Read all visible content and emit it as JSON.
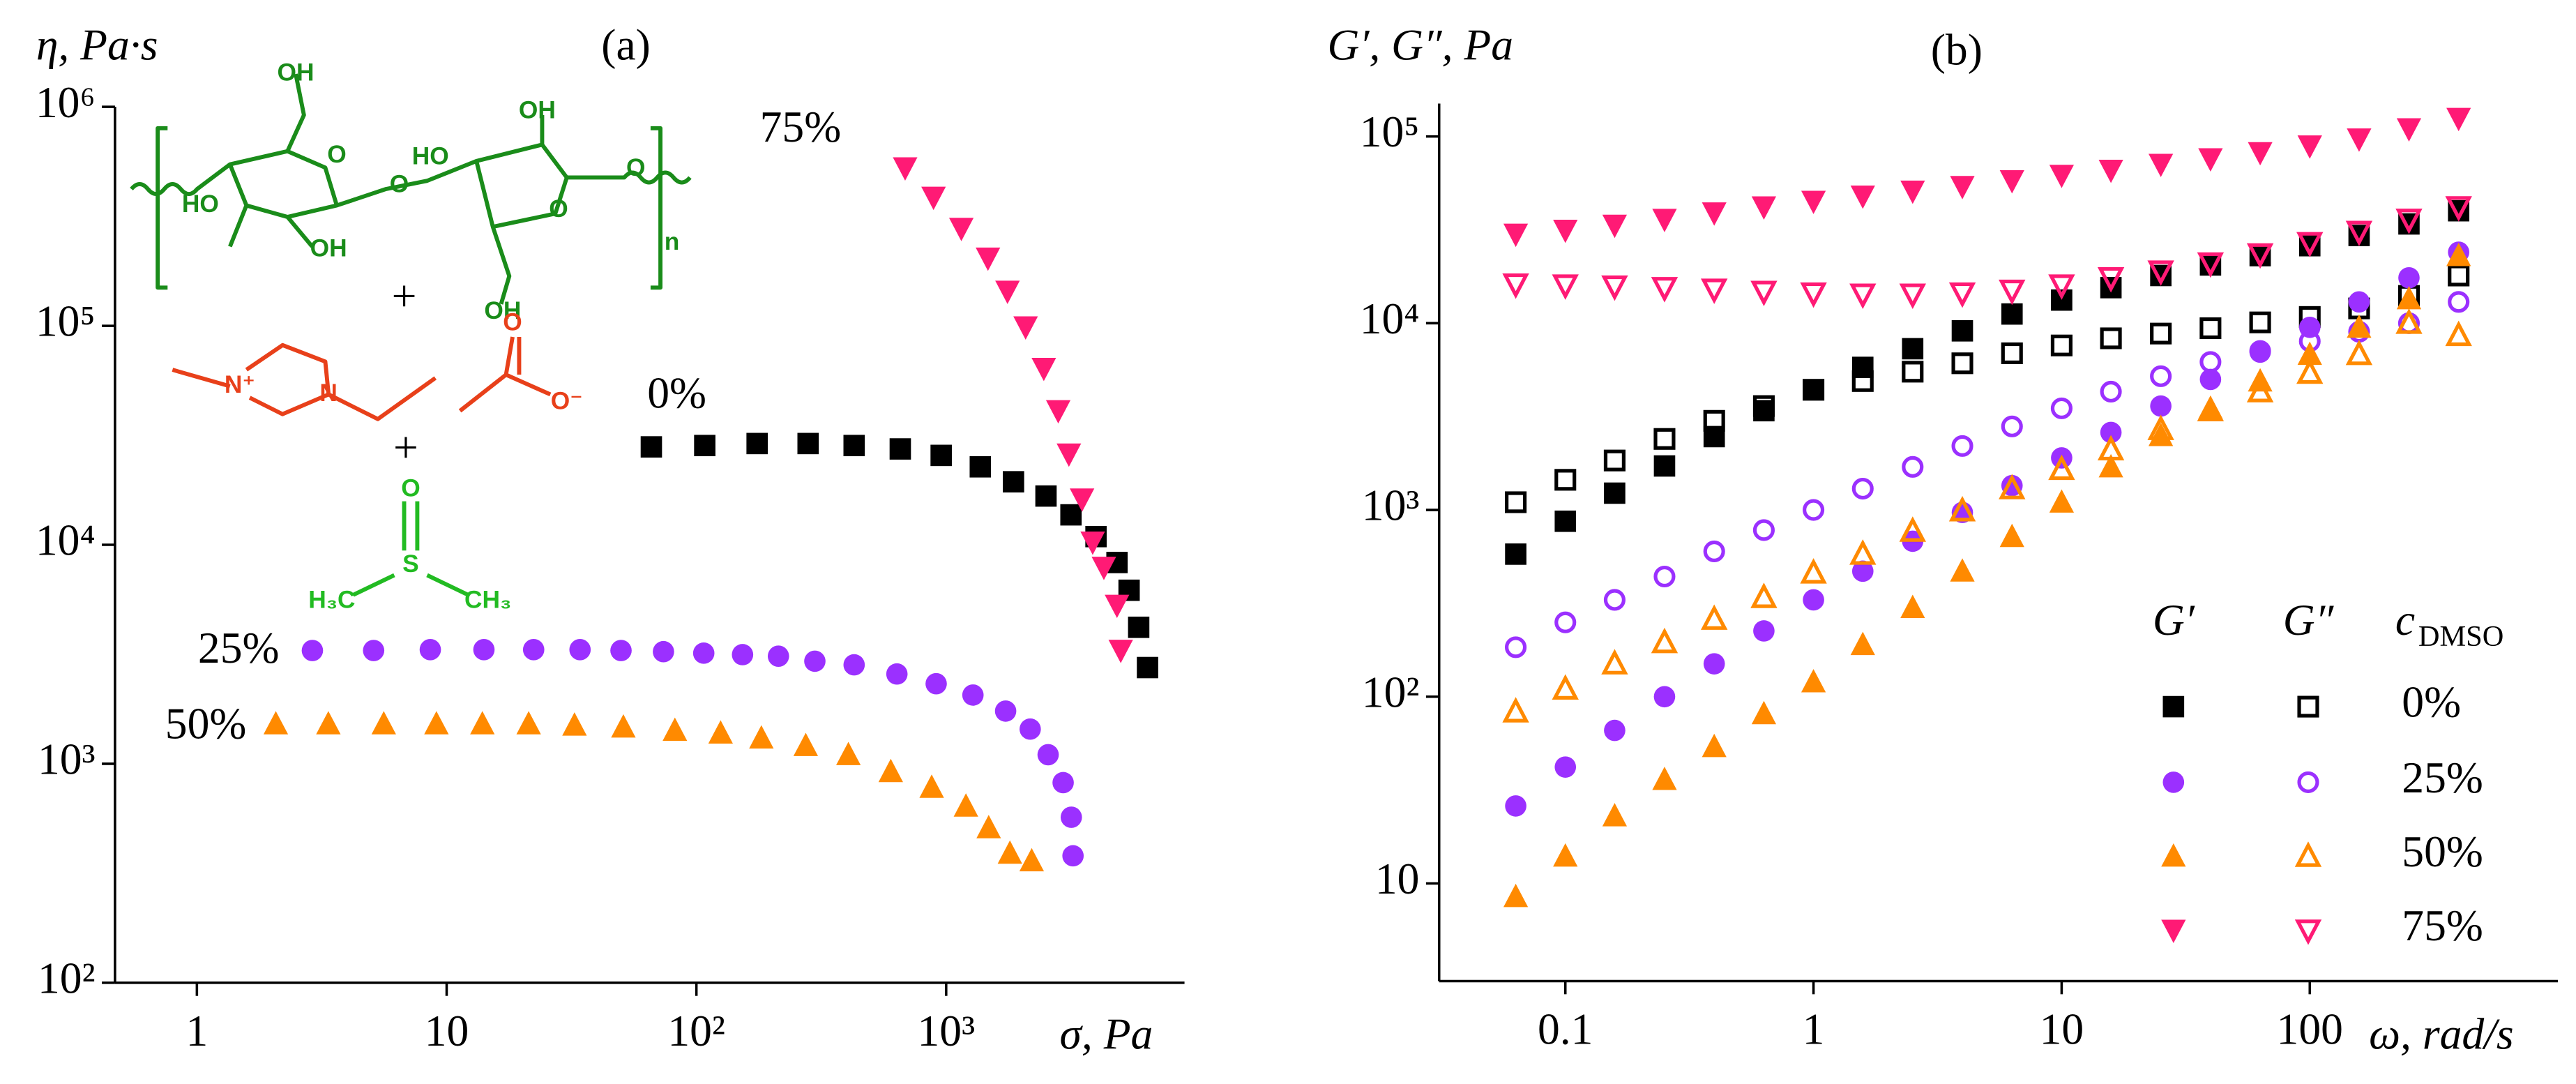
{
  "chart_data": [
    {
      "type": "scatter",
      "panel": "(a)",
      "ylabel": "η, Pa·s",
      "xlabel": "σ, Pa",
      "log_x": true,
      "log_y": true,
      "xlim": [
        0.47,
        9000
      ],
      "ylim": [
        100,
        1000000
      ],
      "xticks": [
        1,
        10,
        {
          "value": 100,
          "label": "10²"
        },
        {
          "value": 1000,
          "label": "10³"
        }
      ],
      "yticks": [
        {
          "value": 100,
          "label": "10²"
        },
        {
          "value": 1000,
          "label": "10³"
        },
        {
          "value": 10000,
          "label": "10⁴"
        },
        {
          "value": 100000,
          "label": "10⁵"
        },
        {
          "value": 1000000,
          "label": "10⁶"
        }
      ],
      "structure_labels": [
        "OH",
        "HO",
        "OH",
        "O",
        "O",
        "HO",
        "OH",
        "O",
        "OH",
        "O",
        "n",
        "+",
        "N⁺",
        "N",
        "O",
        "O⁻",
        "+",
        "O",
        "S",
        "H₃C",
        "CH₃"
      ],
      "series": [
        {
          "name": "0%",
          "color": "#000000",
          "marker": "square",
          "x": [
            66,
            108,
            175,
            280,
            428,
            655,
            955,
            1370,
            1860,
            2510,
            3160,
            3980,
            4830,
            5400,
            5900,
            6400
          ],
          "values": [
            28000,
            28400,
            29000,
            29000,
            28400,
            27400,
            25600,
            22700,
            19400,
            16700,
            13700,
            10900,
            8300,
            6200,
            4200,
            2750
          ]
        },
        {
          "name": "25%",
          "color": "#9b30ff",
          "marker": "circle",
          "x": [
            2.9,
            5.1,
            8.6,
            14.1,
            22.3,
            34.2,
            49.9,
            73.8,
            107,
            153,
            213,
            298,
            428,
            635,
            912,
            1280,
            1730,
            2170,
            2560,
            2940,
            3170,
            3220
          ],
          "values": [
            3290,
            3290,
            3320,
            3320,
            3320,
            3320,
            3290,
            3250,
            3200,
            3150,
            3100,
            2940,
            2830,
            2570,
            2320,
            2060,
            1740,
            1440,
            1100,
            820,
            570,
            380
          ]
        },
        {
          "name": "50%",
          "color": "#ff8a00",
          "marker": "triangle-up",
          "x": [
            2.07,
            3.36,
            5.6,
            9.1,
            13.9,
            21.3,
            32.5,
            51,
            82,
            125,
            182,
            274,
            406,
            600,
            875,
            1200,
            1480,
            1800,
            2200
          ],
          "values": [
            1520,
            1520,
            1520,
            1520,
            1520,
            1520,
            1500,
            1470,
            1420,
            1380,
            1310,
            1210,
            1100,
            920,
            780,
            640,
            510,
            390,
            360
          ]
        },
        {
          "name": "75%",
          "color": "#ff1a75",
          "marker": "triangle-down",
          "x": [
            685,
            890,
            1150,
            1470,
            1760,
            2080,
            2460,
            2810,
            3100,
            3500,
            3860,
            4280,
            4830,
            5000
          ],
          "values": [
            527000,
            387000,
            279000,
            204000,
            144000,
            99000,
            64000,
            41000,
            26000,
            16200,
            10300,
            7900,
            5300,
            3300
          ]
        }
      ]
    },
    {
      "type": "scatter",
      "panel": "(b)",
      "ylabel": "G′, G″, Pa",
      "xlabel": "ω, rad/s",
      "log_x": true,
      "log_y": true,
      "xlim": [
        0.031,
        1000
      ],
      "ylim": [
        3,
        150000
      ],
      "xticks": [
        0.1,
        1,
        10,
        100
      ],
      "yticks": [
        10,
        {
          "value": 100,
          "label": "10²"
        },
        {
          "value": 1000,
          "label": "10³"
        },
        {
          "value": 10000,
          "label": "10⁴"
        },
        {
          "value": 100000,
          "label": "10⁵"
        }
      ],
      "legend": {
        "storage": "G′",
        "loss": "G″",
        "title": "c",
        "title_subscript": "DMSO"
      },
      "x": [
        0.0631,
        0.1,
        0.158,
        0.251,
        0.398,
        0.631,
        1,
        1.58,
        2.51,
        3.98,
        6.31,
        10,
        15.8,
        25.1,
        39.8,
        63.1,
        100,
        158,
        251,
        398
      ],
      "series": [
        {
          "name": "0%",
          "color": "#000000",
          "marker": "square",
          "storage": [
            580,
            870,
            1230,
            1720,
            2470,
            3400,
            4400,
            5800,
            7300,
            9100,
            11200,
            13300,
            15500,
            18000,
            20500,
            23000,
            26000,
            29500,
            34000,
            40000
          ],
          "loss": [
            1100,
            1450,
            1840,
            2400,
            3000,
            3600,
            4400,
            4900,
            5500,
            6100,
            6900,
            7600,
            8300,
            8800,
            9400,
            10100,
            10800,
            12000,
            14000,
            18000
          ]
        },
        {
          "name": "25%",
          "color": "#9b30ff",
          "marker": "circle",
          "storage": [
            26,
            42,
            66,
            100,
            150,
            225,
            330,
            470,
            680,
            970,
            1350,
            1900,
            2600,
            3600,
            5000,
            7000,
            9500,
            13000,
            17500,
            24000
          ],
          "loss": [
            184,
            250,
            330,
            440,
            600,
            780,
            1000,
            1300,
            1700,
            2200,
            2800,
            3500,
            4300,
            5200,
            6200,
            7100,
            8000,
            9000,
            10000,
            13000
          ]
        },
        {
          "name": "50%",
          "color": "#ff8a00",
          "marker": "triangle-up",
          "storage": [
            8.5,
            14,
            23,
            36,
            54,
            81,
            120,
            190,
            300,
            470,
            720,
            1100,
            1700,
            2500,
            3500,
            4900,
            6800,
            9500,
            13500,
            23000
          ],
          "loss": [
            83,
            110,
            150,
            195,
            260,
            340,
            460,
            580,
            770,
            990,
            1300,
            1650,
            2100,
            2700,
            3400,
            4300,
            5400,
            6800,
            10000,
            8600
          ]
        },
        {
          "name": "75%",
          "color": "#ff1a75",
          "marker": "triangle-down",
          "storage": [
            30000,
            31500,
            33500,
            36000,
            39000,
            42000,
            45000,
            48000,
            51000,
            54000,
            58000,
            62000,
            66000,
            71000,
            76000,
            82000,
            89000,
            97000,
            110000,
            125000
          ],
          "loss": [
            16200,
            16000,
            15800,
            15500,
            15200,
            14800,
            14500,
            14300,
            14300,
            14500,
            15000,
            16000,
            17500,
            19000,
            21000,
            23500,
            27000,
            31000,
            36000,
            42000
          ]
        }
      ]
    }
  ]
}
